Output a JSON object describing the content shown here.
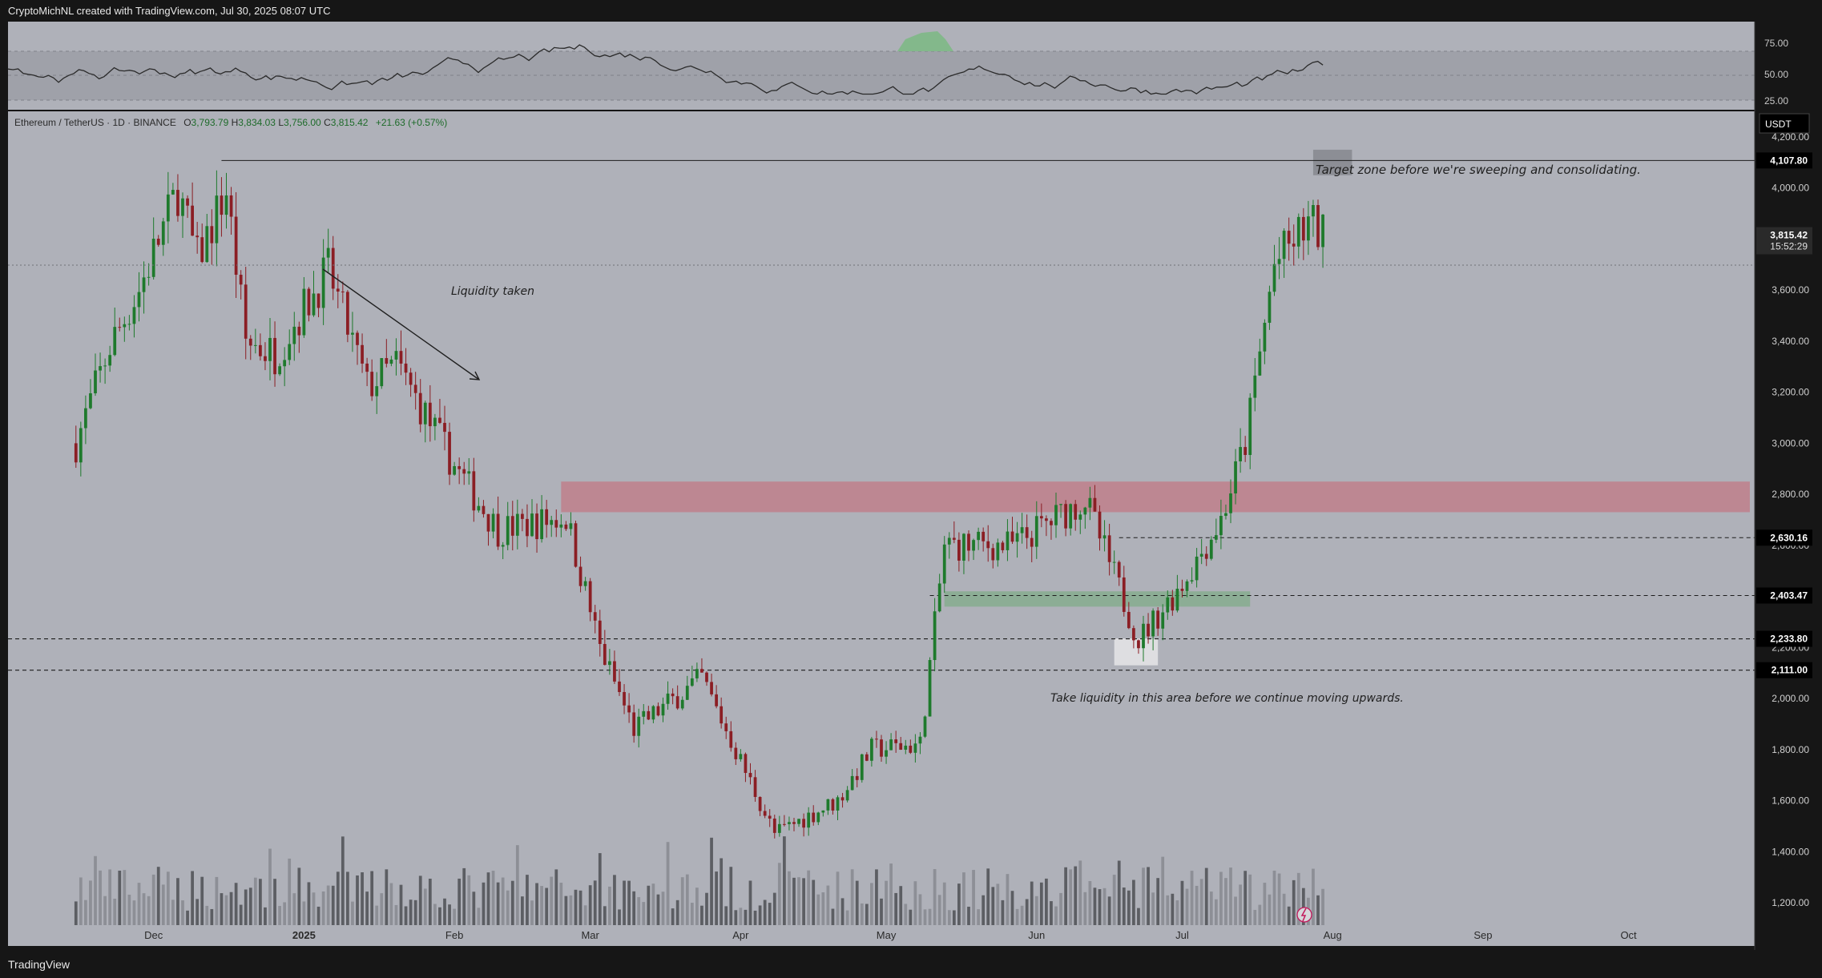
{
  "header": {
    "attribution": "CryptoMichNL created with TradingView.com, Jul 30, 2025 08:07 UTC"
  },
  "footer": {
    "brand": "TradingView"
  },
  "symbol_bar": {
    "name": "Ethereum / TetherUS · 1D · BINANCE",
    "open_label": "O",
    "open": "3,793.79",
    "high_label": "H",
    "high": "3,834.03",
    "low_label": "L",
    "low": "3,756.00",
    "close_label": "C",
    "close": "3,815.42",
    "change": "+21.63 (+0.57%)"
  },
  "currency_badge": "USDT",
  "annotations": {
    "liquidity_taken": "Liquidity taken",
    "target_zone": "Target zone before we're sweeping and consolidating.",
    "take_liquidity": "Take liquidity in this area before we continue moving upwards."
  },
  "price_badges": {
    "target": "4,107.80",
    "current": "3,815.42",
    "countdown": "15:52:29",
    "level1": "2,630.16",
    "level2": "2,403.47",
    "level3": "2,233.80",
    "level4": "2,111.00"
  },
  "colors": {
    "pane_bg": "#afb1b9",
    "bull": "#1e7a2c",
    "bear": "#8b1e24",
    "resistance_zone": "#c27a86",
    "support_zone": "#86ad8e",
    "liquidity_zone": "#e3e3e6",
    "target_zone": "#8a8c92"
  },
  "chart_data": {
    "type": "candlestick",
    "symbol": "Ethereum / TetherUS",
    "timeframe": "1D",
    "exchange": "BINANCE",
    "y_axis": {
      "ticks": [
        "1,200.00",
        "1,400.00",
        "1,600.00",
        "1,800.00",
        "2,000.00",
        "2,200.00",
        "2,400.00",
        "2,600.00",
        "2,800.00",
        "3,000.00",
        "3,200.00",
        "3,400.00",
        "3,600.00",
        "3,800.00",
        "4,000.00",
        "4,200.00"
      ],
      "ylim": [
        1100,
        4300
      ]
    },
    "x_axis": {
      "ticks": [
        "Dec",
        "2025",
        "Feb",
        "Mar",
        "Apr",
        "May",
        "Jun",
        "Jul",
        "Aug",
        "Sep",
        "Oct"
      ]
    },
    "rsi": {
      "ticks": [
        "75.00",
        "50.00",
        "25.00"
      ],
      "levels": [
        70,
        30
      ]
    },
    "price_path": [
      {
        "date": "2024-11-15",
        "price": 3000
      },
      {
        "date": "2024-11-22",
        "price": 3380
      },
      {
        "date": "2024-11-28",
        "price": 3600
      },
      {
        "date": "2024-12-06",
        "price": 3990
      },
      {
        "date": "2024-12-10",
        "price": 3720
      },
      {
        "date": "2024-12-16",
        "price": 3990
      },
      {
        "date": "2024-12-20",
        "price": 3400
      },
      {
        "date": "2024-12-26",
        "price": 3350
      },
      {
        "date": "2025-01-06",
        "price": 3680
      },
      {
        "date": "2025-01-14",
        "price": 3220
      },
      {
        "date": "2025-01-20",
        "price": 3310
      },
      {
        "date": "2025-02-02",
        "price": 2880
      },
      {
        "date": "2025-02-10",
        "price": 2660
      },
      {
        "date": "2025-02-24",
        "price": 2710
      },
      {
        "date": "2025-03-03",
        "price": 2200
      },
      {
        "date": "2025-03-10",
        "price": 1880
      },
      {
        "date": "2025-03-24",
        "price": 2080
      },
      {
        "date": "2025-04-08",
        "price": 1470
      },
      {
        "date": "2025-04-21",
        "price": 1600
      },
      {
        "date": "2025-04-28",
        "price": 1800
      },
      {
        "date": "2025-05-08",
        "price": 1820
      },
      {
        "date": "2025-05-13",
        "price": 2600
      },
      {
        "date": "2025-05-27",
        "price": 2600
      },
      {
        "date": "2025-06-11",
        "price": 2780
      },
      {
        "date": "2025-06-22",
        "price": 2230
      },
      {
        "date": "2025-07-01",
        "price": 2450
      },
      {
        "date": "2025-07-09",
        "price": 2700
      },
      {
        "date": "2025-07-14",
        "price": 3000
      },
      {
        "date": "2025-07-20",
        "price": 3700
      },
      {
        "date": "2025-07-27",
        "price": 3860
      },
      {
        "date": "2025-07-30",
        "price": 3815
      }
    ],
    "levels": [
      4107.8,
      2630.16,
      2403.47,
      2233.8,
      2111.0
    ],
    "zones": [
      {
        "name": "resistance",
        "from": "2025-02-23",
        "to": "2025-10-26",
        "low": 2730,
        "high": 2850
      },
      {
        "name": "support",
        "from": "2025-05-13",
        "to": "2025-07-15",
        "low": 2360,
        "high": 2420
      },
      {
        "name": "liquidity",
        "from": "2025-06-17",
        "to": "2025-06-26",
        "low": 2130,
        "high": 2235
      },
      {
        "name": "target",
        "from": "2025-07-28",
        "to": "2025-08-05",
        "low": 4050,
        "high": 4150
      }
    ]
  }
}
